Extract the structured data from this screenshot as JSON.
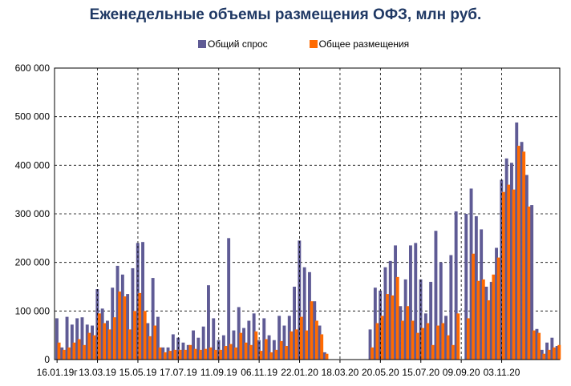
{
  "title": "Еженедельные объемы размещения ОФЗ, млн руб.",
  "colors": {
    "demand": "#5f5b95",
    "placement": "#ff6a00"
  },
  "chart_data": {
    "type": "bar",
    "title": "Еженедельные объемы размещения ОФЗ, млн руб.",
    "xlabel": "",
    "ylabel": "",
    "ylim": [
      0,
      600000
    ],
    "grid": true,
    "legend_position": "top",
    "y_ticks": [
      "0",
      "100 000",
      "200 000",
      "300 000",
      "400 000",
      "500 000",
      "600 000"
    ],
    "x_tick_labels": [
      "16.01.19г",
      "13.03.19",
      "15.05.19",
      "17.07.19",
      "11.09.19",
      "06.11.19",
      "22.01.20",
      "18.03.20",
      "20.05.20",
      "15.07.20",
      "09.09.20",
      "03.11.20"
    ],
    "series": [
      {
        "name": "Общий спрос",
        "values": [
          85000,
          25000,
          88000,
          72000,
          85000,
          87000,
          72000,
          70000,
          145000,
          105000,
          80000,
          148000,
          193000,
          175000,
          135000,
          188000,
          240000,
          242000,
          75000,
          168000,
          88000,
          25000,
          25000,
          52000,
          45000,
          35000,
          30000,
          60000,
          45000,
          68000,
          153000,
          85000,
          40000,
          50000,
          250000,
          60000,
          108000,
          65000,
          80000,
          95000,
          40000,
          85000,
          50000,
          40000,
          90000,
          70000,
          90000,
          150000,
          245000,
          190000,
          180000,
          120000,
          70000,
          15000,
          0,
          0,
          0,
          0,
          0,
          0,
          0,
          0,
          62000,
          148000,
          142000,
          190000,
          203000,
          235000,
          110000,
          165000,
          235000,
          240000,
          165000,
          95000,
          160000,
          265000,
          200000,
          90000,
          215000,
          305000,
          0,
          300000,
          352000,
          295000,
          268000,
          150000,
          160000,
          230000,
          370000,
          414000,
          405000,
          488000,
          448000,
          380000,
          318000,
          63000,
          20000,
          35000,
          45000,
          28000
        ],
        "color": "#5f5b95"
      },
      {
        "name": "Общее размещения",
        "values": [
          35000,
          20000,
          25000,
          35000,
          42000,
          30000,
          55000,
          50000,
          95000,
          75000,
          62000,
          87000,
          140000,
          130000,
          62000,
          100000,
          137000,
          100000,
          48000,
          70000,
          25000,
          15000,
          18000,
          20000,
          20000,
          20000,
          30000,
          22000,
          20000,
          22000,
          25000,
          20000,
          20000,
          28000,
          32000,
          25000,
          55000,
          35000,
          30000,
          58000,
          18000,
          42000,
          15000,
          20000,
          38000,
          28000,
          58000,
          62000,
          88000,
          60000,
          120000,
          80000,
          52000,
          12000,
          0,
          0,
          0,
          0,
          0,
          0,
          0,
          0,
          25000,
          75000,
          90000,
          135000,
          132000,
          170000,
          80000,
          110000,
          80000,
          55000,
          65000,
          75000,
          30000,
          70000,
          75000,
          50000,
          30000,
          95000,
          0,
          85000,
          218000,
          162000,
          165000,
          122000,
          175000,
          210000,
          345000,
          360000,
          350000,
          440000,
          428000,
          315000,
          60000,
          55000,
          12000,
          20000,
          25000,
          30000
        ],
        "color": "#ff6a00"
      }
    ]
  }
}
